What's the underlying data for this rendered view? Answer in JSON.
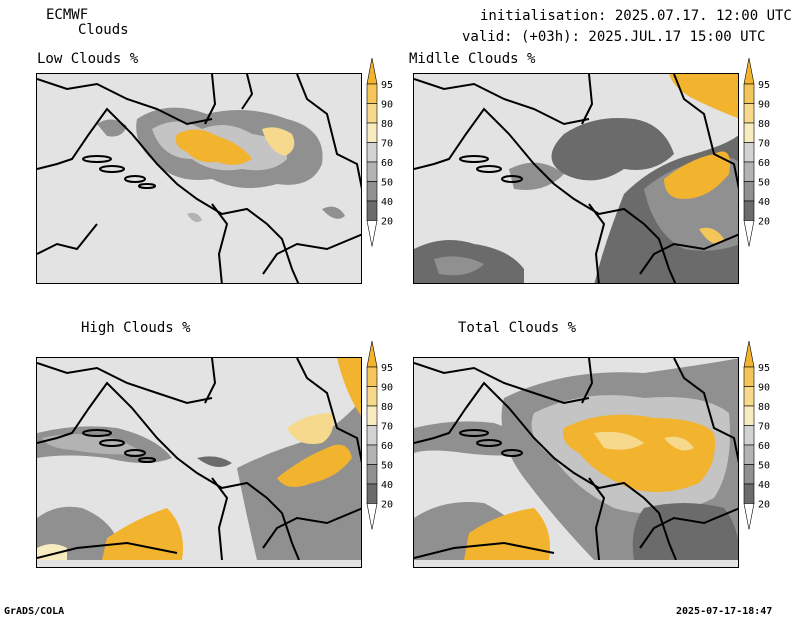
{
  "header": {
    "model": "ECMWF",
    "product": "Clouds",
    "initialisation": "initialisation: 2025.07.17. 12:00 UTC",
    "valid": "valid: (+03h): 2025.JUL.17 15:00 UTC"
  },
  "panels": [
    {
      "title": "Low Clouds %"
    },
    {
      "title": "Midlle Clouds %"
    },
    {
      "title": "High Clouds %"
    },
    {
      "title": "Total Clouds %"
    }
  ],
  "colorbar": {
    "levels": [
      "95",
      "90",
      "80",
      "70",
      "60",
      "50",
      "40",
      "20"
    ],
    "colors": [
      "#f2b32e",
      "#f4c65a",
      "#f6d98d",
      "#f7ecc0",
      "#d2d2d2",
      "#b3b3b3",
      "#909090",
      "#6b6b6b",
      "#484848"
    ]
  },
  "footer": {
    "left": "GrADS/COLA",
    "right": "2025-07-17-18:47"
  }
}
